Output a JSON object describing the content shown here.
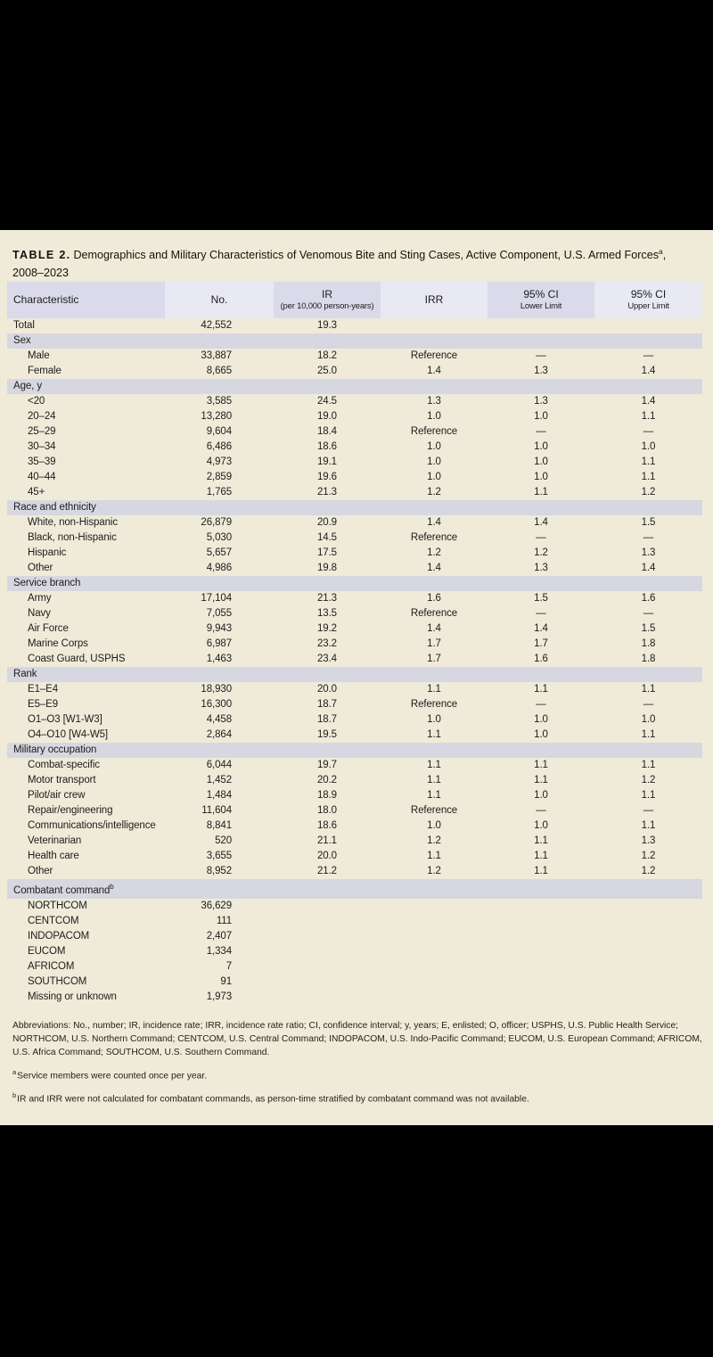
{
  "title": {
    "label": "TABLE 2.",
    "text": "Demographics and Military Characteristics of Venomous Bite and Sting Cases, Active Component, U.S. Armed Forces",
    "superscript": "a",
    "comma": ",",
    "line2": "2008–2023"
  },
  "colors": {
    "page_background": "#f0ead9",
    "header_column_dark": "#dadaea",
    "header_column_light": "#e9e9f4",
    "section_band": "#d7d7e1",
    "text": "#1c1c1c",
    "surround_band": "#000000"
  },
  "table": {
    "headers": [
      {
        "line1": "Characteristic",
        "line2": ""
      },
      {
        "line1": "No.",
        "line2": ""
      },
      {
        "line1": "IR",
        "line2": "(per 10,000 person-years)"
      },
      {
        "line1": "IRR",
        "line2": ""
      },
      {
        "line1": "95% CI",
        "line2": "Lower Limit"
      },
      {
        "line1": "95% CI",
        "line2": "Upper Limit"
      }
    ],
    "rows": [
      {
        "type": "data",
        "indent": false,
        "label": "Total",
        "no": "42,552",
        "ir": "19.3",
        "irr": "",
        "ci_lower": "",
        "ci_upper": ""
      },
      {
        "type": "section",
        "label": "Sex",
        "sup": ""
      },
      {
        "type": "data",
        "indent": true,
        "label": "Male",
        "no": "33,887",
        "ir": "18.2",
        "irr": "Reference",
        "ci_lower": "—",
        "ci_upper": "—"
      },
      {
        "type": "data",
        "indent": true,
        "label": "Female",
        "no": "8,665",
        "ir": "25.0",
        "irr": "1.4",
        "ci_lower": "1.3",
        "ci_upper": "1.4"
      },
      {
        "type": "section",
        "label": "Age, y",
        "sup": ""
      },
      {
        "type": "data",
        "indent": true,
        "label": "<20",
        "no": "3,585",
        "ir": "24.5",
        "irr": "1.3",
        "ci_lower": "1.3",
        "ci_upper": "1.4"
      },
      {
        "type": "data",
        "indent": true,
        "label": "20–24",
        "no": "13,280",
        "ir": "19.0",
        "irr": "1.0",
        "ci_lower": "1.0",
        "ci_upper": "1.1"
      },
      {
        "type": "data",
        "indent": true,
        "label": "25–29",
        "no": "9,604",
        "ir": "18.4",
        "irr": "Reference",
        "ci_lower": "—",
        "ci_upper": "—"
      },
      {
        "type": "data",
        "indent": true,
        "label": "30–34",
        "no": "6,486",
        "ir": "18.6",
        "irr": "1.0",
        "ci_lower": "1.0",
        "ci_upper": "1.0"
      },
      {
        "type": "data",
        "indent": true,
        "label": "35–39",
        "no": "4,973",
        "ir": "19.1",
        "irr": "1.0",
        "ci_lower": "1.0",
        "ci_upper": "1.1"
      },
      {
        "type": "data",
        "indent": true,
        "label": "40–44",
        "no": "2,859",
        "ir": "19.6",
        "irr": "1.0",
        "ci_lower": "1.0",
        "ci_upper": "1.1"
      },
      {
        "type": "data",
        "indent": true,
        "label": "45+",
        "no": "1,765",
        "ir": "21.3",
        "irr": "1.2",
        "ci_lower": "1.1",
        "ci_upper": "1.2"
      },
      {
        "type": "section",
        "label": "Race and ethnicity",
        "sup": ""
      },
      {
        "type": "data",
        "indent": true,
        "label": "White, non-Hispanic",
        "no": "26,879",
        "ir": "20.9",
        "irr": "1.4",
        "ci_lower": "1.4",
        "ci_upper": "1.5"
      },
      {
        "type": "data",
        "indent": true,
        "label": "Black, non-Hispanic",
        "no": "5,030",
        "ir": "14.5",
        "irr": "Reference",
        "ci_lower": "—",
        "ci_upper": "—"
      },
      {
        "type": "data",
        "indent": true,
        "label": "Hispanic",
        "no": "5,657",
        "ir": "17.5",
        "irr": "1.2",
        "ci_lower": "1.2",
        "ci_upper": "1.3"
      },
      {
        "type": "data",
        "indent": true,
        "label": "Other",
        "no": "4,986",
        "ir": "19.8",
        "irr": "1.4",
        "ci_lower": "1.3",
        "ci_upper": "1.4"
      },
      {
        "type": "section",
        "label": "Service branch",
        "sup": ""
      },
      {
        "type": "data",
        "indent": true,
        "label": "Army",
        "no": "17,104",
        "ir": "21.3",
        "irr": "1.6",
        "ci_lower": "1.5",
        "ci_upper": "1.6"
      },
      {
        "type": "data",
        "indent": true,
        "label": "Navy",
        "no": "7,055",
        "ir": "13.5",
        "irr": "Reference",
        "ci_lower": "—",
        "ci_upper": "—"
      },
      {
        "type": "data",
        "indent": true,
        "label": "Air Force",
        "no": "9,943",
        "ir": "19.2",
        "irr": "1.4",
        "ci_lower": "1.4",
        "ci_upper": "1.5"
      },
      {
        "type": "data",
        "indent": true,
        "label": "Marine Corps",
        "no": "6,987",
        "ir": "23.2",
        "irr": "1.7",
        "ci_lower": "1.7",
        "ci_upper": "1.8"
      },
      {
        "type": "data",
        "indent": true,
        "label": "Coast Guard, USPHS",
        "no": "1,463",
        "ir": "23.4",
        "irr": "1.7",
        "ci_lower": "1.6",
        "ci_upper": "1.8"
      },
      {
        "type": "section",
        "label": "Rank",
        "sup": ""
      },
      {
        "type": "data",
        "indent": true,
        "label": "E1–E4",
        "no": "18,930",
        "ir": "20.0",
        "irr": "1.1",
        "ci_lower": "1.1",
        "ci_upper": "1.1"
      },
      {
        "type": "data",
        "indent": true,
        "label": "E5–E9",
        "no": "16,300",
        "ir": "18.7",
        "irr": "Reference",
        "ci_lower": "—",
        "ci_upper": "—"
      },
      {
        "type": "data",
        "indent": true,
        "label": "O1–O3 [W1-W3]",
        "no": "4,458",
        "ir": "18.7",
        "irr": "1.0",
        "ci_lower": "1.0",
        "ci_upper": "1.0"
      },
      {
        "type": "data",
        "indent": true,
        "label": "O4–O10 [W4-W5]",
        "no": "2,864",
        "ir": "19.5",
        "irr": "1.1",
        "ci_lower": "1.0",
        "ci_upper": "1.1"
      },
      {
        "type": "section",
        "label": "Military occupation",
        "sup": ""
      },
      {
        "type": "data",
        "indent": true,
        "label": "Combat-specific",
        "no": "6,044",
        "ir": "19.7",
        "irr": "1.1",
        "ci_lower": "1.1",
        "ci_upper": "1.1"
      },
      {
        "type": "data",
        "indent": true,
        "label": "Motor transport",
        "no": "1,452",
        "ir": "20.2",
        "irr": "1.1",
        "ci_lower": "1.1",
        "ci_upper": "1.2"
      },
      {
        "type": "data",
        "indent": true,
        "label": "Pilot/air crew",
        "no": "1,484",
        "ir": "18.9",
        "irr": "1.1",
        "ci_lower": "1.0",
        "ci_upper": "1.1"
      },
      {
        "type": "data",
        "indent": true,
        "label": "Repair/engineering",
        "no": "11,604",
        "ir": "18.0",
        "irr": "Reference",
        "ci_lower": "—",
        "ci_upper": "—"
      },
      {
        "type": "data",
        "indent": true,
        "label": "Communications/intelligence",
        "no": "8,841",
        "ir": "18.6",
        "irr": "1.0",
        "ci_lower": "1.0",
        "ci_upper": "1.1"
      },
      {
        "type": "data",
        "indent": true,
        "label": "Veterinarian",
        "no": "520",
        "ir": "21.1",
        "irr": "1.2",
        "ci_lower": "1.1",
        "ci_upper": "1.3"
      },
      {
        "type": "data",
        "indent": true,
        "label": "Health care",
        "no": "3,655",
        "ir": "20.0",
        "irr": "1.1",
        "ci_lower": "1.1",
        "ci_upper": "1.2"
      },
      {
        "type": "data",
        "indent": true,
        "label": "Other",
        "no": "8,952",
        "ir": "21.2",
        "irr": "1.2",
        "ci_lower": "1.1",
        "ci_upper": "1.2"
      },
      {
        "type": "section",
        "label": "Combatant command",
        "sup": "b"
      },
      {
        "type": "data",
        "indent": true,
        "label": "NORTHCOM",
        "no": "36,629",
        "ir": "",
        "irr": "",
        "ci_lower": "",
        "ci_upper": ""
      },
      {
        "type": "data",
        "indent": true,
        "label": "CENTCOM",
        "no": "111",
        "ir": "",
        "irr": "",
        "ci_lower": "",
        "ci_upper": ""
      },
      {
        "type": "data",
        "indent": true,
        "label": "INDOPACOM",
        "no": "2,407",
        "ir": "",
        "irr": "",
        "ci_lower": "",
        "ci_upper": ""
      },
      {
        "type": "data",
        "indent": true,
        "label": "EUCOM",
        "no": "1,334",
        "ir": "",
        "irr": "",
        "ci_lower": "",
        "ci_upper": ""
      },
      {
        "type": "data",
        "indent": true,
        "label": "AFRICOM",
        "no": "7",
        "ir": "",
        "irr": "",
        "ci_lower": "",
        "ci_upper": ""
      },
      {
        "type": "data",
        "indent": true,
        "label": "SOUTHCOM",
        "no": "91",
        "ir": "",
        "irr": "",
        "ci_lower": "",
        "ci_upper": ""
      },
      {
        "type": "data",
        "indent": true,
        "label": "Missing or unknown",
        "no": "1,973",
        "ir": "",
        "irr": "",
        "ci_lower": "",
        "ci_upper": ""
      }
    ]
  },
  "footnotes": {
    "abbreviations": "Abbreviations: No., number; IR, incidence rate; IRR, incidence rate ratio; CI, confidence interval; y, years; E, enlisted; O, officer; USPHS, U.S. Public Health Service; NORTHCOM, U.S. Northern Command; CENTCOM, U.S. Central Command; INDOPACOM, U.S. Indo-Pacific Command; EUCOM, U.S. European Command; AFRICOM, U.S. Africa Command; SOUTHCOM, U.S. Southern Command.",
    "note_a_sup": "a",
    "note_a": "Service members were counted once per year.",
    "note_b_sup": "b",
    "note_b": "IR and IRR were not calculated for combatant commands, as person-time stratified by combatant command was not available."
  }
}
